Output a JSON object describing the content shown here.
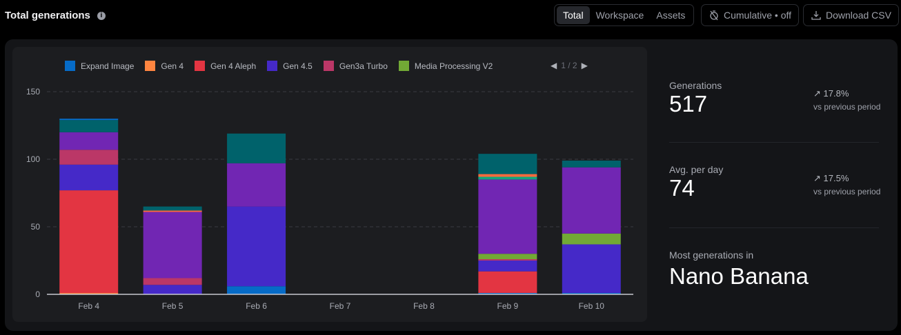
{
  "header": {
    "title": "Total generations",
    "info_icon": "info-icon",
    "tabs": [
      "Total",
      "Workspace",
      "Assets"
    ],
    "active_tab": "Total",
    "cumulative_label": "Cumulative • off",
    "download_label": "Download CSV"
  },
  "legend_pager": "1 / 2",
  "stats": {
    "generations": {
      "label": "Generations",
      "value": "517",
      "delta": "17.8%",
      "delta_sub": "vs previous period"
    },
    "avg": {
      "label": "Avg. per day",
      "value": "74",
      "delta": "17.5%",
      "delta_sub": "vs previous period"
    },
    "most": {
      "label": "Most generations in",
      "value": "Nano Banana"
    }
  },
  "chart_data": {
    "type": "bar",
    "stacked": true,
    "grid": true,
    "legend_placement": "top",
    "ylim": [
      0,
      150
    ],
    "yticks": [
      "0",
      "50",
      "100",
      "150"
    ],
    "categories": [
      "Feb 4",
      "Feb 5",
      "Feb 6",
      "Feb 7",
      "Feb 8",
      "Feb 9",
      "Feb 10"
    ],
    "series": [
      {
        "name": "Expand Image",
        "color": "#066bc7",
        "values": [
          0,
          0,
          6,
          0,
          0,
          1,
          1
        ]
      },
      {
        "name": "Gen 4",
        "color": "#ff8540",
        "values": [
          1,
          0,
          0,
          0,
          0,
          0,
          0
        ]
      },
      {
        "name": "Gen 4 Aleph",
        "color": "#e33542",
        "values": [
          76,
          0,
          0,
          0,
          0,
          16,
          0
        ]
      },
      {
        "name": "Gen 4.5",
        "color": "#4529c8",
        "values": [
          19,
          7,
          59,
          0,
          0,
          8,
          36
        ]
      },
      {
        "name": "Gen3a Turbo",
        "color": "#bb3767",
        "values": [
          11,
          5,
          0,
          0,
          0,
          1,
          0
        ]
      },
      {
        "name": "Media Processing V2",
        "color": "#72a935",
        "values": [
          0,
          0,
          0,
          0,
          0,
          4,
          8
        ]
      },
      {
        "color": "#7126b3",
        "values": [
          13,
          49,
          32,
          0,
          0,
          55,
          49
        ]
      },
      {
        "color": "#13a57d",
        "values": [
          0,
          0,
          0,
          0,
          0,
          2,
          0
        ]
      },
      {
        "color": "#ff6a3d",
        "values": [
          0,
          1,
          0,
          0,
          0,
          2,
          0
        ]
      },
      {
        "color": "#00626b",
        "values": [
          9,
          3,
          22,
          0,
          0,
          15,
          5
        ]
      },
      {
        "color": "#066bc7",
        "values": [
          1,
          0,
          0,
          0,
          0,
          0,
          0
        ]
      }
    ]
  }
}
